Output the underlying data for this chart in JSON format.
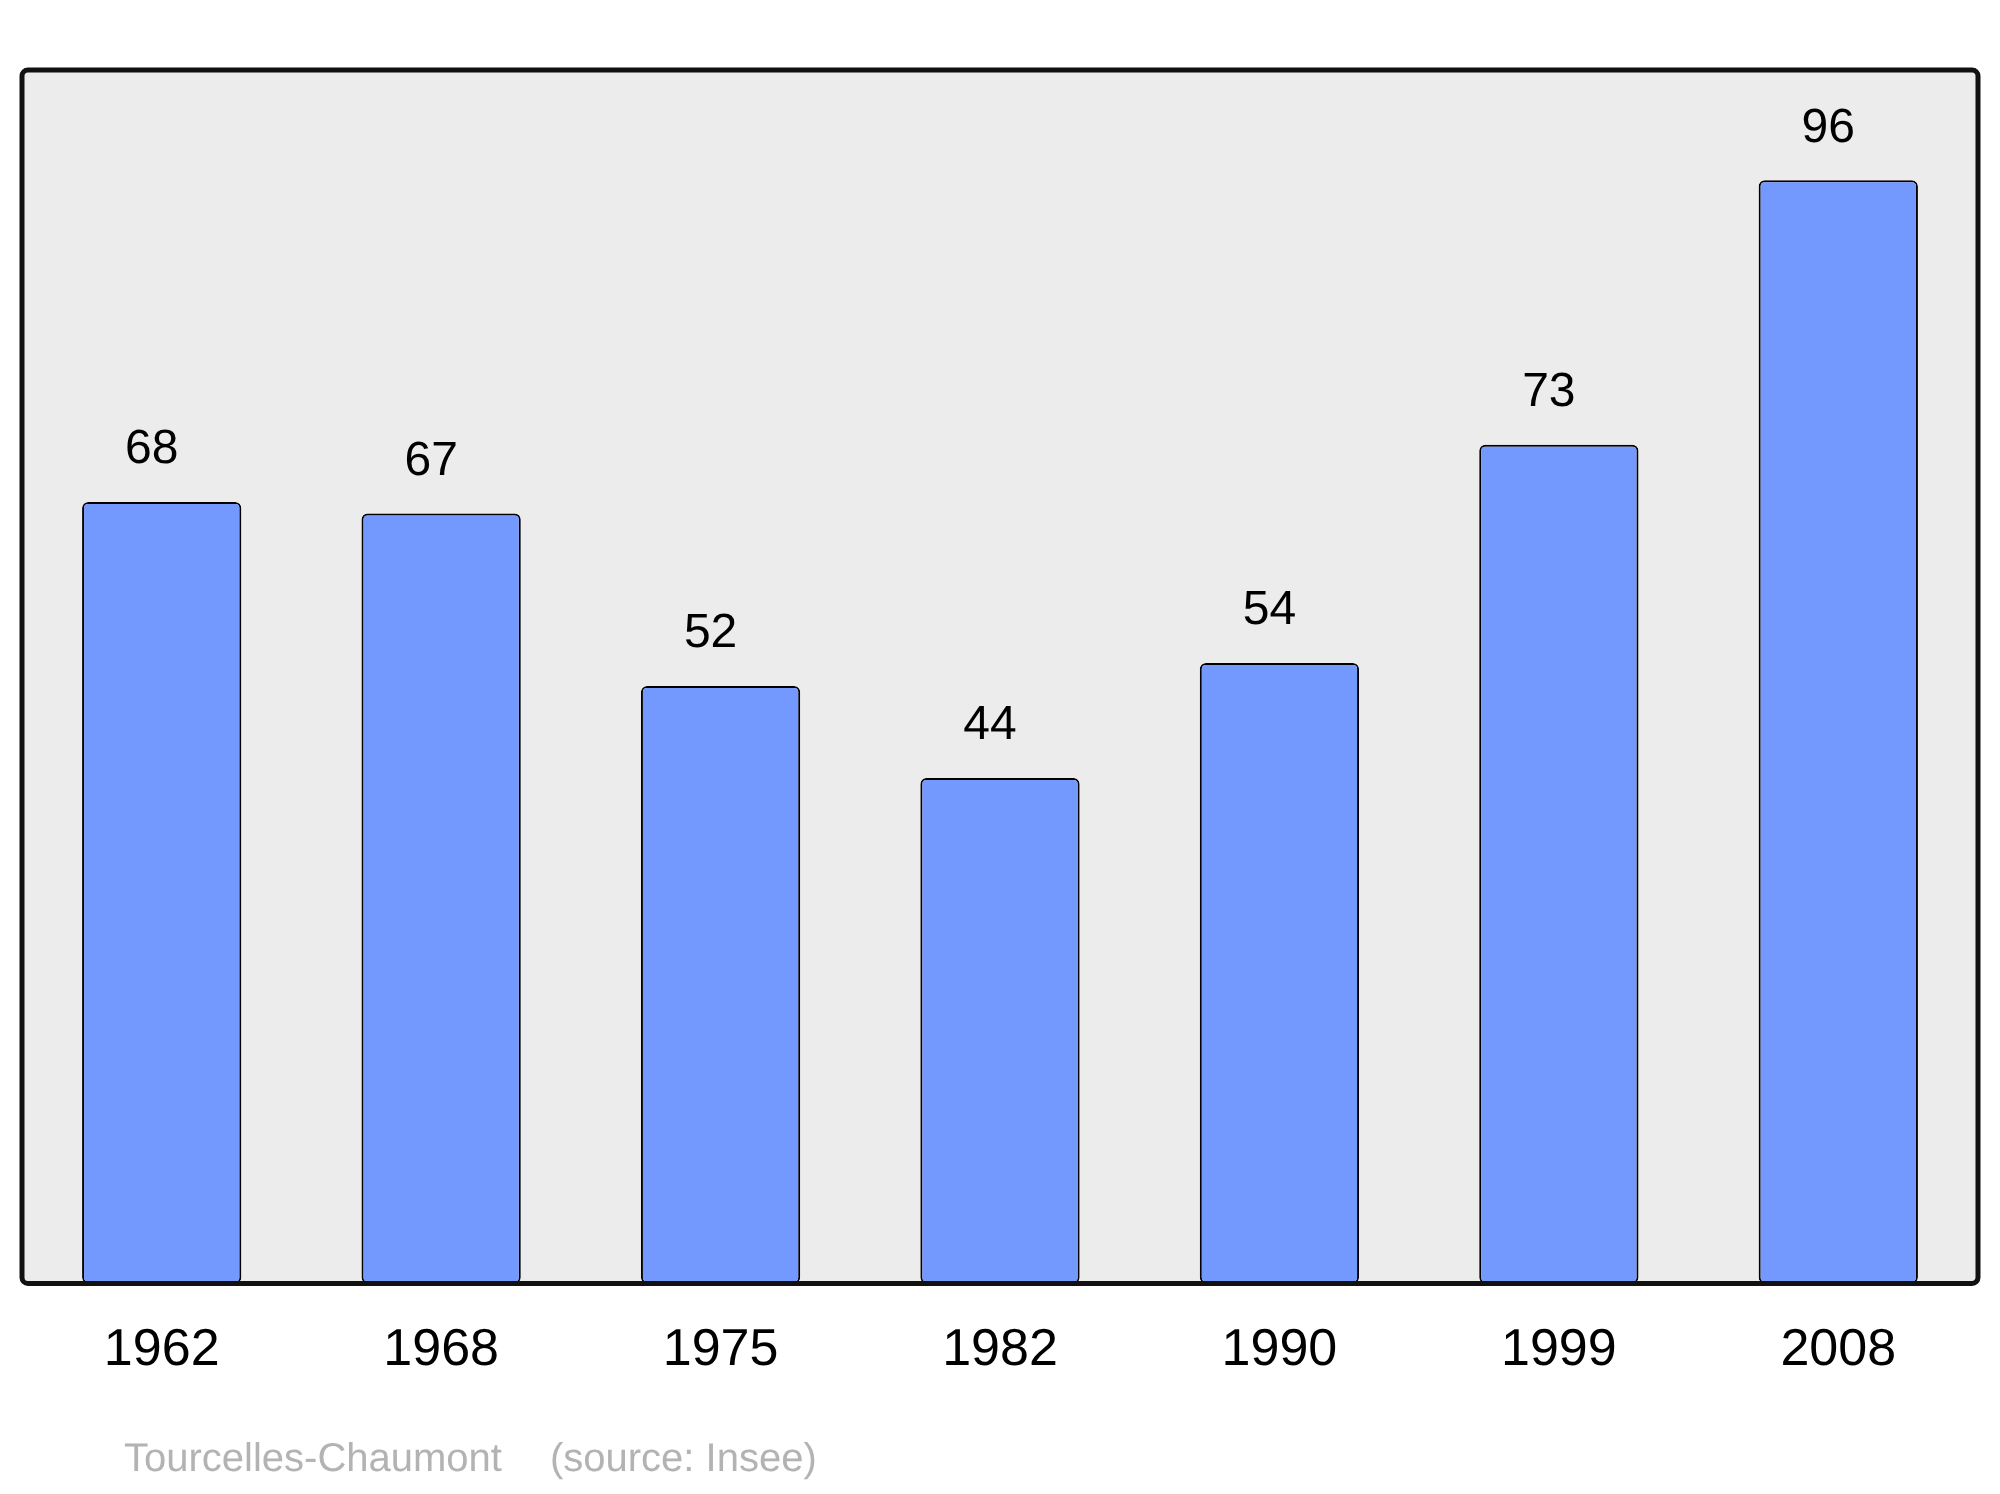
{
  "chart_data": {
    "type": "bar",
    "categories": [
      "1962",
      "1968",
      "1975",
      "1982",
      "1990",
      "1999",
      "2008"
    ],
    "values": [
      68,
      67,
      52,
      44,
      54,
      73,
      96
    ],
    "color": "#7399ff",
    "data_labels": true,
    "grid": false,
    "legend": false,
    "annotations": [
      "Tourcelles-Chaumont",
      "(source: Insee)"
    ]
  }
}
